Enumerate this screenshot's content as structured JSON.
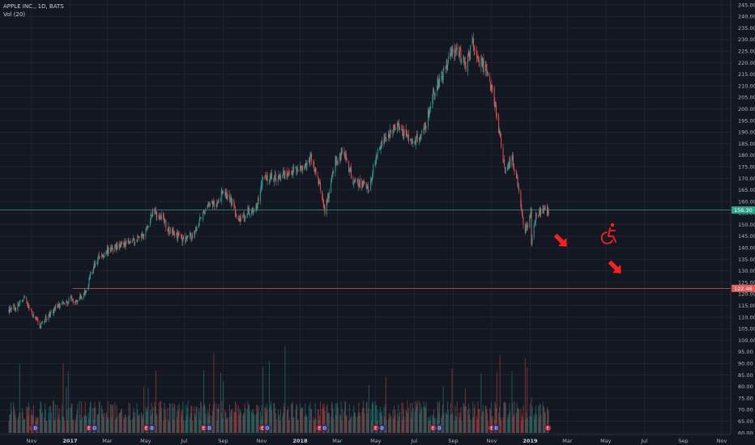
{
  "legend": {
    "symbol": "APPLE INC., 1D, BATS",
    "volume": "Vol (20)"
  },
  "colors": {
    "background": "#131722",
    "grid": "#262b38",
    "up": "#26a69a",
    "down": "#ef5350",
    "green_line": "#2ea489",
    "red_line": "#e05a5a",
    "annotation": "#ff1e1e"
  },
  "chart_data": {
    "type": "candlestick",
    "title": "APPLE INC., 1D, BATS",
    "ylim": [
      60,
      245
    ],
    "yticks": [
      60,
      65,
      70,
      75,
      80,
      85,
      90,
      95,
      100,
      105,
      110,
      115,
      120,
      125,
      130,
      135,
      140,
      145,
      150,
      155,
      160,
      165,
      170,
      175,
      180,
      185,
      190,
      195,
      200,
      205,
      210,
      215,
      220,
      225,
      230,
      235,
      240,
      245
    ],
    "x_labels": [
      {
        "label": "Nov",
        "date": "2016-11-01"
      },
      {
        "label": "2017",
        "date": "2017-01-01",
        "bold": true
      },
      {
        "label": "Mar",
        "date": "2017-03-01"
      },
      {
        "label": "May",
        "date": "2017-05-01"
      },
      {
        "label": "Jul",
        "date": "2017-07-01"
      },
      {
        "label": "Sep",
        "date": "2017-09-01"
      },
      {
        "label": "Nov",
        "date": "2017-11-01"
      },
      {
        "label": "2018",
        "date": "2018-01-01",
        "bold": true
      },
      {
        "label": "Mar",
        "date": "2018-03-01"
      },
      {
        "label": "May",
        "date": "2018-05-01"
      },
      {
        "label": "Jul",
        "date": "2018-07-01"
      },
      {
        "label": "Sep",
        "date": "2018-09-01"
      },
      {
        "label": "Nov",
        "date": "2018-11-01"
      },
      {
        "label": "2019",
        "date": "2019-01-01",
        "bold": true
      },
      {
        "label": "Mar",
        "date": "2019-03-01"
      },
      {
        "label": "May",
        "date": "2019-05-01"
      },
      {
        "label": "Jul",
        "date": "2019-07-01"
      },
      {
        "label": "Sep",
        "date": "2019-09-01"
      },
      {
        "label": "Nov",
        "date": "2019-11-01"
      }
    ],
    "price_path": [
      [
        "2016-09-26",
        113
      ],
      [
        "2016-10-07",
        114
      ],
      [
        "2016-10-20",
        118
      ],
      [
        "2016-10-28",
        114
      ],
      [
        "2016-11-08",
        109
      ],
      [
        "2016-11-14",
        106
      ],
      [
        "2016-11-28",
        111
      ],
      [
        "2016-12-12",
        115
      ],
      [
        "2016-12-30",
        117
      ],
      [
        "2017-01-15",
        118
      ],
      [
        "2017-01-30",
        122
      ],
      [
        "2017-02-01",
        128
      ],
      [
        "2017-02-14",
        135
      ],
      [
        "2017-03-01",
        139
      ],
      [
        "2017-03-20",
        141
      ],
      [
        "2017-04-10",
        143
      ],
      [
        "2017-04-28",
        145
      ],
      [
        "2017-05-12",
        156
      ],
      [
        "2017-05-25",
        153
      ],
      [
        "2017-06-09",
        147
      ],
      [
        "2017-06-20",
        145
      ],
      [
        "2017-07-05",
        143
      ],
      [
        "2017-07-20",
        148
      ],
      [
        "2017-08-03",
        157
      ],
      [
        "2017-08-21",
        160
      ],
      [
        "2017-09-01",
        164
      ],
      [
        "2017-09-14",
        160
      ],
      [
        "2017-09-25",
        152
      ],
      [
        "2017-10-10",
        156
      ],
      [
        "2017-10-24",
        157
      ],
      [
        "2017-11-03",
        172
      ],
      [
        "2017-11-15",
        170
      ],
      [
        "2017-11-30",
        171
      ],
      [
        "2017-12-15",
        173
      ],
      [
        "2018-01-04",
        175
      ],
      [
        "2018-01-18",
        179
      ],
      [
        "2018-02-01",
        167
      ],
      [
        "2018-02-09",
        155
      ],
      [
        "2018-02-26",
        178
      ],
      [
        "2018-03-12",
        181
      ],
      [
        "2018-03-27",
        168
      ],
      [
        "2018-04-06",
        168
      ],
      [
        "2018-04-20",
        165
      ],
      [
        "2018-05-04",
        183
      ],
      [
        "2018-05-18",
        188
      ],
      [
        "2018-06-05",
        193
      ],
      [
        "2018-06-18",
        188
      ],
      [
        "2018-06-28",
        185
      ],
      [
        "2018-07-17",
        191
      ],
      [
        "2018-08-01",
        208
      ],
      [
        "2018-08-20",
        217
      ],
      [
        "2018-08-30",
        226
      ],
      [
        "2018-09-12",
        223
      ],
      [
        "2018-09-21",
        218
      ],
      [
        "2018-10-02",
        229
      ],
      [
        "2018-10-12",
        221
      ],
      [
        "2018-10-25",
        216
      ],
      [
        "2018-11-02",
        207
      ],
      [
        "2018-11-12",
        192
      ],
      [
        "2018-11-22",
        173
      ],
      [
        "2018-12-04",
        179
      ],
      [
        "2018-12-14",
        165
      ],
      [
        "2018-12-24",
        146
      ],
      [
        "2019-01-02",
        157
      ],
      [
        "2019-01-03",
        142
      ],
      [
        "2019-01-10",
        153
      ],
      [
        "2019-01-18",
        156
      ],
      [
        "2019-01-25",
        157
      ],
      [
        "2019-01-30",
        155
      ]
    ],
    "volume_axis_range": [
      60,
      110
    ],
    "horizontal_lines": [
      {
        "name": "current price",
        "value": 156.3,
        "tag": "156.30"
      },
      {
        "name": "support",
        "value": 122.46,
        "tag": "122.46"
      }
    ]
  },
  "event_markers": [
    {
      "date": "2016-11-03",
      "kind": "E",
      "color": "#b02d3d"
    },
    {
      "date": "2016-11-07",
      "kind": "D",
      "color": "#3d3f8f"
    },
    {
      "date": "2017-01-31",
      "kind": "E",
      "color": "#b02d3d"
    },
    {
      "date": "2017-02-09",
      "kind": "D",
      "color": "#3d3f8f"
    },
    {
      "date": "2017-05-02",
      "kind": "E",
      "color": "#b02d3d"
    },
    {
      "date": "2017-05-11",
      "kind": "D",
      "color": "#3d3f8f"
    },
    {
      "date": "2017-08-01",
      "kind": "E",
      "color": "#b02d3d"
    },
    {
      "date": "2017-08-10",
      "kind": "D",
      "color": "#3d3f8f"
    },
    {
      "date": "2017-11-02",
      "kind": "E",
      "color": "#b02d3d"
    },
    {
      "date": "2017-11-10",
      "kind": "D",
      "color": "#3d3f8f"
    },
    {
      "date": "2018-02-01",
      "kind": "E",
      "color": "#b02d3d"
    },
    {
      "date": "2018-02-09",
      "kind": "D",
      "color": "#3d3f8f"
    },
    {
      "date": "2018-05-01",
      "kind": "E",
      "color": "#b02d3d"
    },
    {
      "date": "2018-05-11",
      "kind": "D",
      "color": "#3d3f8f"
    },
    {
      "date": "2018-07-31",
      "kind": "E",
      "color": "#b02d3d"
    },
    {
      "date": "2018-08-10",
      "kind": "D",
      "color": "#3d3f8f"
    },
    {
      "date": "2018-11-01",
      "kind": "E",
      "color": "#b02d3d"
    },
    {
      "date": "2018-11-08",
      "kind": "D",
      "color": "#3d3f8f"
    },
    {
      "date": "2019-01-29",
      "kind": "E",
      "color": "#b02d3d"
    }
  ]
}
